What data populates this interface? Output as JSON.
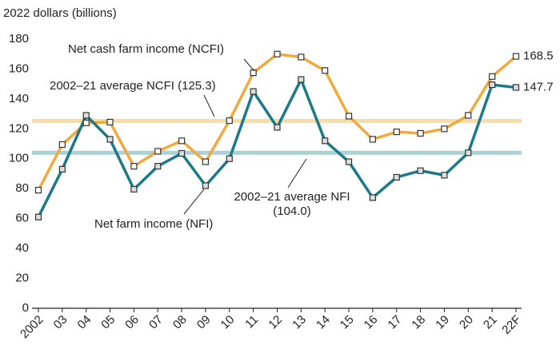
{
  "chart_data": {
    "type": "line",
    "y_axis_label": "2022 dollars (billions)",
    "categories": [
      "2002",
      "03",
      "04",
      "05",
      "06",
      "07",
      "08",
      "09",
      "10",
      "11",
      "12",
      "13",
      "14",
      "15",
      "16",
      "17",
      "18",
      "19",
      "20",
      "21",
      "22F"
    ],
    "series": [
      {
        "name": "Net cash farm income (NCFI)",
        "color": "#f2a93b",
        "values": [
          79,
          109.5,
          124,
          124.5,
          95,
          105,
          112,
          98,
          125.5,
          157.5,
          170,
          168,
          159,
          128.5,
          113,
          118,
          117,
          120,
          129,
          155,
          168.5
        ],
        "value_labels": [
          null,
          null,
          null,
          null,
          null,
          null,
          null,
          null,
          null,
          null,
          null,
          null,
          null,
          null,
          null,
          null,
          null,
          null,
          null,
          null,
          "168.5"
        ]
      },
      {
        "name": "Net farm income (NFI)",
        "color": "#1b7a89",
        "values": [
          61,
          93,
          129,
          113,
          79.6,
          95,
          103.6,
          82,
          100,
          145,
          121,
          153,
          112,
          98,
          74,
          87.6,
          92,
          89,
          104,
          149.5,
          147.7
        ],
        "value_labels": [
          null,
          null,
          null,
          null,
          null,
          null,
          null,
          null,
          null,
          null,
          null,
          null,
          null,
          null,
          null,
          null,
          null,
          null,
          null,
          null,
          "147.7"
        ]
      }
    ],
    "reference_lines": [
      {
        "label": [
          "2002–21 average NCFI (125.3)"
        ],
        "value": 125.3,
        "color": "#f7dca6"
      },
      {
        "label": [
          "2002–21 average NFI",
          "(104.0)"
        ],
        "value": 104.0,
        "color": "#a9d2d8"
      }
    ],
    "ylim": [
      0,
      180
    ],
    "yticks": [
      0,
      20,
      40,
      60,
      80,
      100,
      120,
      140,
      160,
      180
    ]
  }
}
